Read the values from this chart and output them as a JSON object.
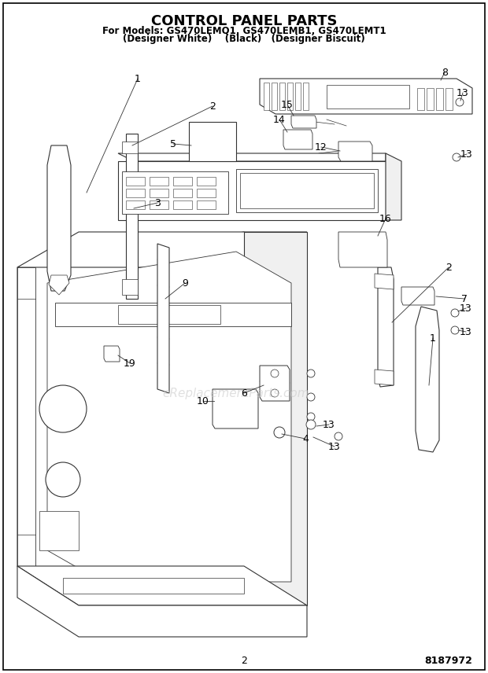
{
  "title": "CONTROL PANEL PARTS",
  "subtitle_line1": "For Models: GS470LEMQ1, GS470LEMB1, GS470LEMT1",
  "subtitle_line2": "(Designer White)    (Black)   (Designer Biscuit)",
  "page_number": "2",
  "part_number": "8187972",
  "bg_color": "#ffffff",
  "border_color": "#000000",
  "title_fontsize": 13,
  "subtitle_fontsize": 8.5,
  "footer_fontsize": 9,
  "watermark_text": "eReplacementParts.com",
  "watermark_color": "#cccccc",
  "line_color": "#333333",
  "lw": 0.8
}
